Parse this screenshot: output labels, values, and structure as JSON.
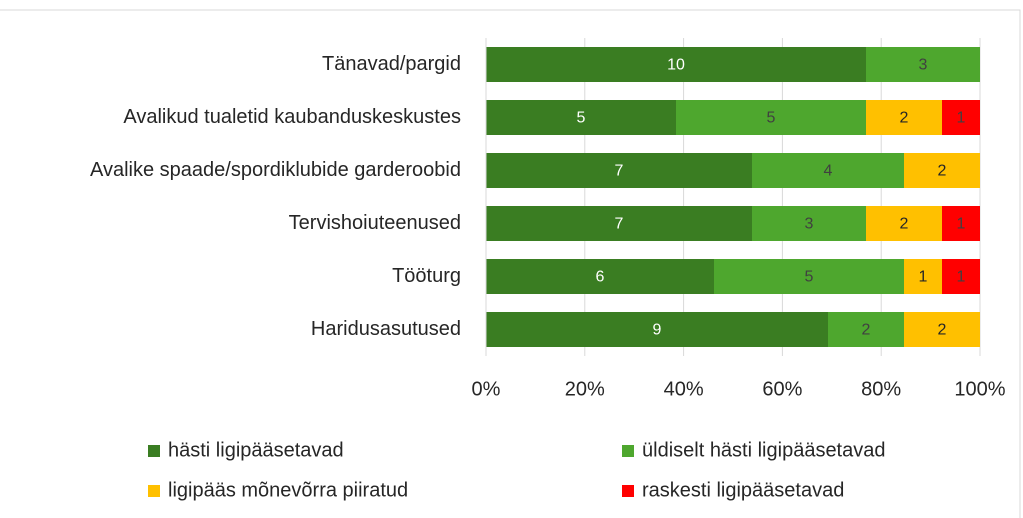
{
  "chart_data": {
    "type": "bar",
    "orientation": "horizontal",
    "stacked": "percent",
    "categories": [
      "Tänavad/pargid",
      "Avalikud tualetid kaubanduskeskustes",
      "Avalike spaade/spordiklubide garderoobid",
      "Tervishoiuteenused",
      "Tööturg",
      "Haridusasutused"
    ],
    "series": [
      {
        "name": "hästi ligipääsetavad",
        "color": "#3a7d22",
        "label_color": "#ffffff",
        "values": [
          10,
          5,
          7,
          7,
          6,
          9
        ]
      },
      {
        "name": "üldiselt hästi ligipääsetavad",
        "color": "#4ea72e",
        "label_color": "#404040",
        "values": [
          3,
          5,
          4,
          3,
          5,
          2
        ]
      },
      {
        "name": "ligipääs mõnevõrra piiratud",
        "color": "#ffc000",
        "label_color": "#262626",
        "values": [
          0,
          2,
          2,
          2,
          1,
          2
        ]
      },
      {
        "name": "raskesti ligipääsetavad",
        "color": "#ff0000",
        "label_color": "#404040",
        "values": [
          0,
          1,
          0,
          1,
          1,
          0
        ]
      }
    ],
    "xlim": [
      0,
      100
    ],
    "xticks": [
      {
        "value": 0,
        "label": "0%"
      },
      {
        "value": 20,
        "label": "20%"
      },
      {
        "value": 40,
        "label": "40%"
      },
      {
        "value": 60,
        "label": "60%"
      },
      {
        "value": 80,
        "label": "80%"
      },
      {
        "value": 100,
        "label": "100%"
      }
    ],
    "grid": true,
    "legend": "bottom"
  }
}
